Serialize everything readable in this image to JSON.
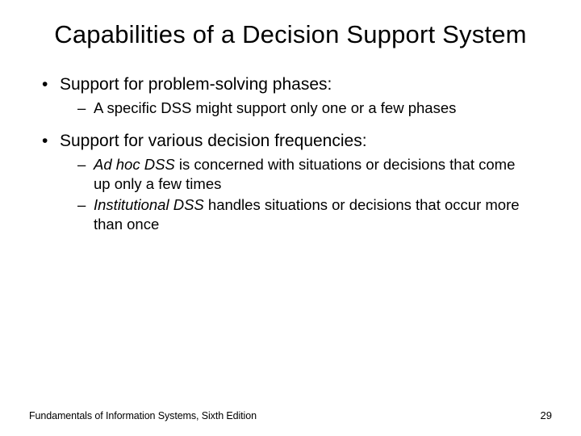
{
  "slide": {
    "title": "Capabilities of a Decision Support System",
    "bullets": {
      "b1": "Support for problem-solving phases:",
      "b1_sub1": "A specific DSS might support only one or a few phases",
      "b2": "Support for various decision frequencies:",
      "b2_sub1_em": "Ad hoc DSS",
      "b2_sub1_rest": " is concerned with situations or decisions that come up only a few times",
      "b2_sub2_em": "Institutional DSS",
      "b2_sub2_rest": " handles situations or decisions that occur more than once"
    },
    "footer": {
      "left": "Fundamentals of Information Systems, Sixth Edition",
      "page": "29"
    }
  },
  "style": {
    "background_color": "#ffffff",
    "text_color": "#000000",
    "title_fontsize": 31,
    "body_fontsize_l1": 21,
    "body_fontsize_l2": 18.5,
    "footer_fontsize": 12.5,
    "font_family": "Arial"
  },
  "markers": {
    "bullet": "•",
    "dash": "–"
  }
}
